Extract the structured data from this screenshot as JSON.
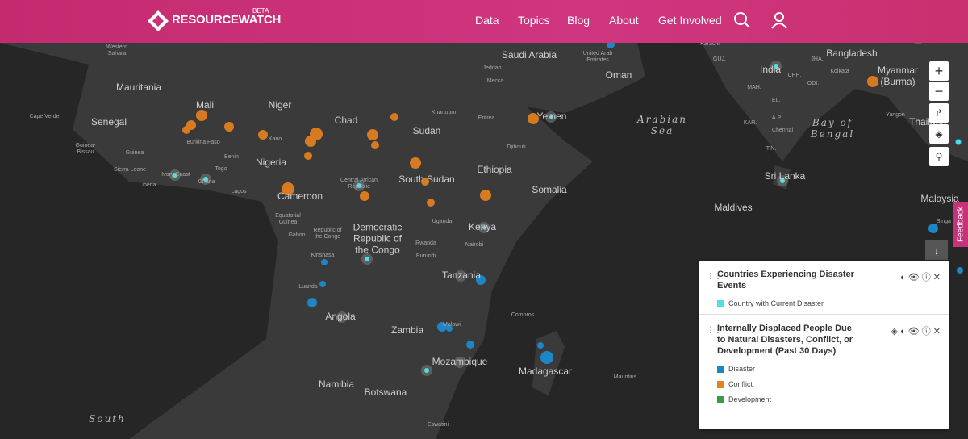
{
  "header": {
    "logo": "RESOURCEWATCH",
    "badge": "BETA",
    "nav": [
      "Data",
      "Topics",
      "Blog",
      "About",
      "Get Involved"
    ]
  },
  "map": {
    "labels": [
      "Western Sahara",
      "Mauritania",
      "Mali",
      "Niger",
      "Chad",
      "Sudan",
      "Khartoum",
      "Saudi Arabia",
      "Jeddah",
      "Mecca",
      "United Arab Emirates",
      "Oman",
      "Yemen",
      "Eritrea",
      "Djibouti",
      "Arabian Sea",
      "Cape Verde",
      "Senegal",
      "Guinea-Bissau",
      "Guinea",
      "Burkina Faso",
      "Benin",
      "Kano",
      "Togo",
      "Sierra Leone",
      "Ivory Coast",
      "Ghana",
      "Liberia",
      "Nigeria",
      "Lagos",
      "Cameroon",
      "Central African Republic",
      "South Sudan",
      "Ethiopia",
      "Somalia",
      "Equatorial Guinea",
      "Gabon",
      "Republic of the Congo",
      "Democratic Republic of the Congo",
      "Uganda",
      "Kenya",
      "Rwanda",
      "Nairobi",
      "Burundi",
      "Kinshasa",
      "Tanzania",
      "Luanda",
      "Angola",
      "Comoros",
      "Zambia",
      "Malawi",
      "Mozambique",
      "Madagascar",
      "Mauritius",
      "Namibia",
      "Botswana",
      "Eswatini",
      "South",
      "Karachi",
      "GUJ.",
      "JHA.",
      "India",
      "CHH.",
      "ODI.",
      "Kolkata",
      "Bangladesh",
      "Myanmar (Burma)",
      "MAH.",
      "TEL.",
      "A.P.",
      "KAR.",
      "Chennai",
      "T.N.",
      "Yangon",
      "Thailand",
      "Bay of Bengal",
      "Sri Lanka",
      "Maldives",
      "Malaysia",
      "Singa"
    ]
  },
  "legend": {
    "layers": [
      {
        "title": "Countries Experiencing Disaster Events",
        "items": [
          {
            "label": "Country with Current Disaster",
            "color": "#4fe0e6"
          }
        ]
      },
      {
        "title": "Internally Displaced People Due to Natural Disasters, Conflict, or Development (Past 30 Days)",
        "items": [
          {
            "label": "Disaster",
            "color": "#1f86c6"
          },
          {
            "label": "Conflict",
            "color": "#e8821e"
          },
          {
            "label": "Development",
            "color": "#3a9a48"
          }
        ]
      }
    ]
  },
  "feedback": "Feedback"
}
